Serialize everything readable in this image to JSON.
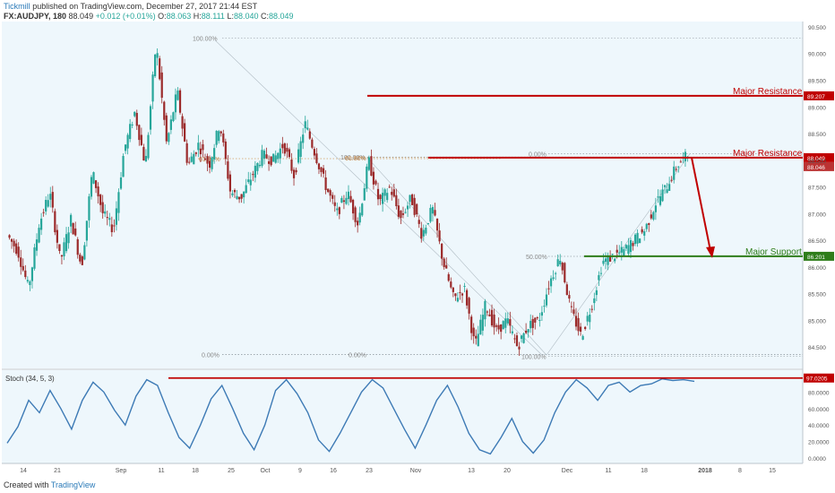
{
  "header": {
    "author": "Tickmill",
    "published": "published on TradingView.com, December 27, 2017 21:44 EST",
    "symbol": "FX:AUDJPY, 180",
    "last": "88.049",
    "change": "+0.012 (+0.01%)",
    "open_label": "O:",
    "open": "88.063",
    "high_label": "H:",
    "high": "88.111",
    "low_label": "L:",
    "low": "88.040",
    "close_label": "C:",
    "close": "88.049"
  },
  "footer": {
    "created_with": "Created with",
    "brand": "TradingView"
  },
  "colors": {
    "background": "#eef7fc",
    "up": "#26a69a",
    "down": "#9b2a2a",
    "resistance": "#c00000",
    "support": "#2e7d1a",
    "stoch": "#3d7ab5",
    "fib": "#999999"
  },
  "chart_data": [
    {
      "type": "candlestick",
      "ylim": [
        84.1,
        90.6
      ],
      "y_ticks": [
        84.5,
        85.0,
        85.5,
        86.0,
        86.5,
        87.0,
        87.5,
        88.0,
        88.5,
        89.0,
        89.5,
        90.0,
        90.5
      ],
      "y_tick_labels": [
        "84.500",
        "85.000",
        "85.500",
        "86.000",
        "86.500",
        "87.000",
        "87.500",
        "88.000",
        "88.500",
        "89.000",
        "89.500",
        "90.000",
        "90.500"
      ],
      "x_ticks": [
        "14",
        "21",
        "Sep",
        "11",
        "18",
        "25",
        "Oct",
        "9",
        "16",
        "23",
        "Nov",
        "13",
        "20",
        "Dec",
        "11",
        "18",
        "2018",
        "8",
        "15"
      ],
      "price_path": [
        86.6,
        86.3,
        85.6,
        86.8,
        87.4,
        86.1,
        86.9,
        86.0,
        87.8,
        87.0,
        86.7,
        88.2,
        88.9,
        87.9,
        90.2,
        88.3,
        89.3,
        87.9,
        88.3,
        87.9,
        88.7,
        87.4,
        87.3,
        87.7,
        88.1,
        88.0,
        88.3,
        87.7,
        88.7,
        88.1,
        87.5,
        87.0,
        87.4,
        86.8,
        88.0,
        87.2,
        87.5,
        86.9,
        87.3,
        86.6,
        87.1,
        86.1,
        85.4,
        85.6,
        84.5,
        85.3,
        84.8,
        85.0,
        84.5,
        84.9,
        85.0,
        85.7,
        86.2,
        85.2,
        84.7,
        85.3,
        86.1,
        86.2,
        86.3,
        86.5,
        86.7,
        87.2,
        87.5,
        87.9,
        88.1
      ],
      "last_price": 88.049,
      "levels": [
        {
          "label": "Major Resistance",
          "price": 89.207,
          "price_label": "89.207",
          "color": "#c00000"
        },
        {
          "label": "Major Resistance",
          "price": 88.049,
          "price_label": "88.049",
          "color": "#c00000"
        },
        {
          "label": "Major Support",
          "price": 86.201,
          "price_label": "86.201",
          "color": "#2e7d1a"
        }
      ],
      "extra_price_label": "88.046",
      "fib_levels": [
        {
          "label": "100.00%",
          "price": 90.29
        },
        {
          "label": "61.80%",
          "price": 88.03
        },
        {
          "label": "0.00%",
          "price": 84.36
        },
        {
          "label": "100.00%",
          "price": 88.06
        },
        {
          "label": "61.80%",
          "price": 88.05
        },
        {
          "label": "0.00%",
          "price": 84.36
        },
        {
          "label": "0.00%",
          "price": 88.12
        },
        {
          "label": "50.00%",
          "price": 86.2
        },
        {
          "label": "100.00%",
          "price": 84.33
        }
      ],
      "arrow": {
        "from_price": 88.049,
        "to_price": 86.201
      }
    },
    {
      "type": "line",
      "title": "Stoch (34, 5, 3)",
      "ylim": [
        0,
        100
      ],
      "y_ticks": [
        0,
        20,
        40,
        60,
        80
      ],
      "y_tick_labels": [
        "0.0000",
        "20.0000",
        "40.0000",
        "60.0000",
        "80.0000"
      ],
      "level": {
        "value": 97.0205,
        "label": "97.0205"
      },
      "series": [
        {
          "values": [
            18,
            38,
            70,
            55,
            82,
            60,
            35,
            70,
            92,
            80,
            58,
            40,
            75,
            95,
            88,
            55,
            25,
            12,
            40,
            72,
            88,
            60,
            30,
            10,
            40,
            82,
            95,
            78,
            55,
            22,
            8,
            30,
            55,
            80,
            95,
            85,
            60,
            35,
            12,
            40,
            70,
            88,
            62,
            30,
            10,
            5,
            25,
            48,
            20,
            6,
            22,
            55,
            80,
            95,
            85,
            70,
            88,
            92,
            80,
            88,
            90,
            96,
            94,
            95,
            93
          ]
        }
      ]
    }
  ]
}
